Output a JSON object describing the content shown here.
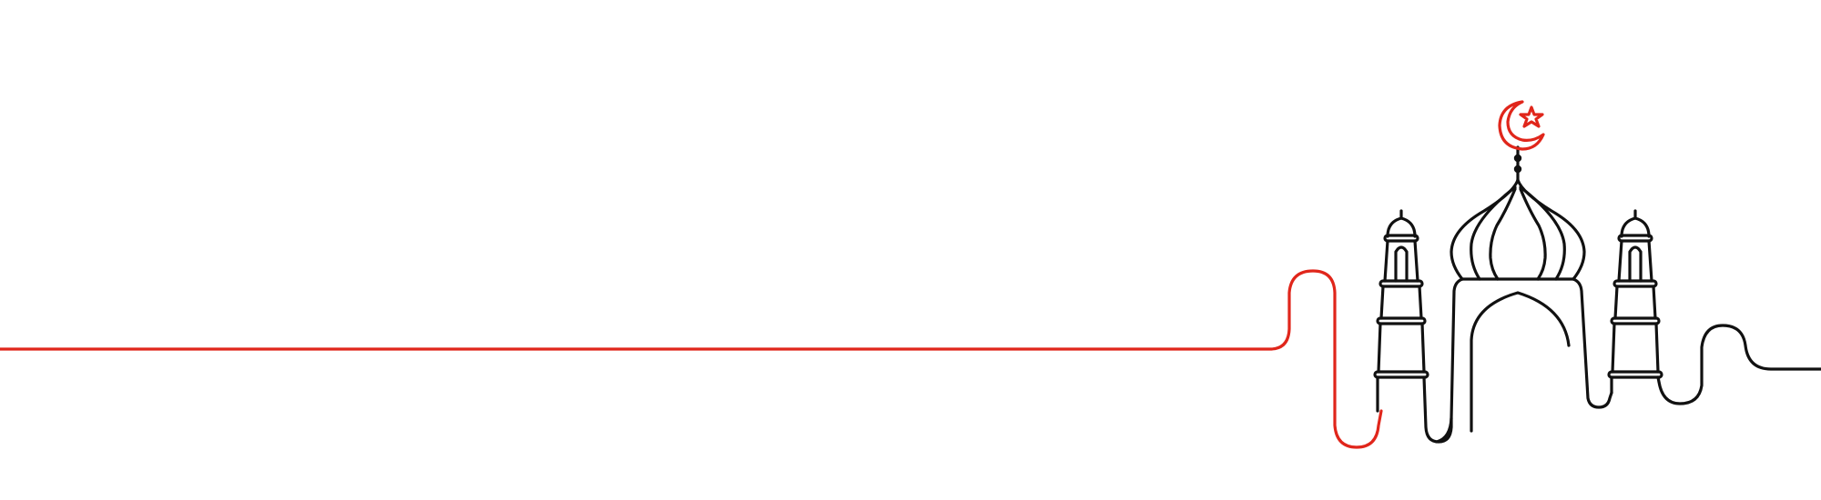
{
  "illustration": {
    "subject": "mosque-line-art",
    "icons": [
      "crescent-icon",
      "star-icon"
    ],
    "colors": {
      "background": "#ffffff",
      "accent": "#e0261b",
      "outline": "#111111"
    }
  }
}
